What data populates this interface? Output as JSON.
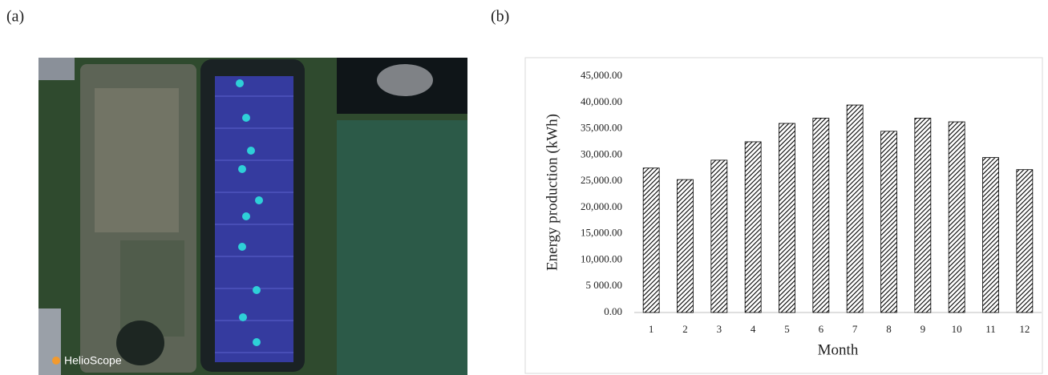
{
  "panel_labels": [
    "(a)",
    "(b)"
  ],
  "image_watermark": "HelioScope",
  "chart_data": {
    "type": "bar",
    "categories": [
      "1",
      "2",
      "3",
      "4",
      "5",
      "6",
      "7",
      "8",
      "9",
      "10",
      "11",
      "12"
    ],
    "values": [
      27500,
      25300,
      29000,
      32500,
      36000,
      37000,
      39500,
      34500,
      37000,
      36300,
      29500,
      27200
    ],
    "color": "#000000",
    "pattern": "diagonal-hatch",
    "x_label": "Month",
    "y_label": "Energy production (kWh)",
    "ylim": [
      0,
      45000
    ],
    "yticks": [
      {
        "value": 0,
        "label": "0.00"
      },
      {
        "value": 5000,
        "label": "5 000.00"
      },
      {
        "value": 10000,
        "label": "10,000.00"
      },
      {
        "value": 15000,
        "label": "15,000.00"
      },
      {
        "value": 20000,
        "label": "20,000.00"
      },
      {
        "value": 25000,
        "label": "25,000.00"
      },
      {
        "value": 30000,
        "label": "30,000.00"
      },
      {
        "value": 35000,
        "label": "35,000.00"
      },
      {
        "value": 40000,
        "label": "40,000.00"
      },
      {
        "value": 45000,
        "label": "45,000.00"
      }
    ],
    "grid": false
  }
}
